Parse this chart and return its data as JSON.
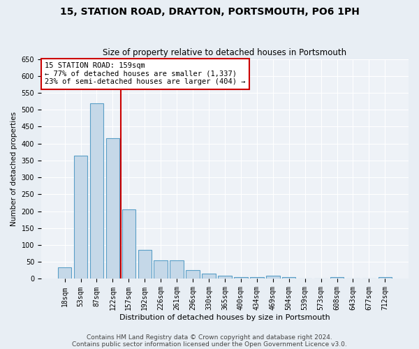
{
  "title1": "15, STATION ROAD, DRAYTON, PORTSMOUTH, PO6 1PH",
  "title2": "Size of property relative to detached houses in Portsmouth",
  "xlabel": "Distribution of detached houses by size in Portsmouth",
  "ylabel": "Number of detached properties",
  "categories": [
    "18sqm",
    "53sqm",
    "87sqm",
    "122sqm",
    "157sqm",
    "192sqm",
    "226sqm",
    "261sqm",
    "296sqm",
    "330sqm",
    "365sqm",
    "400sqm",
    "434sqm",
    "469sqm",
    "504sqm",
    "539sqm",
    "573sqm",
    "608sqm",
    "643sqm",
    "677sqm",
    "712sqm"
  ],
  "values": [
    35,
    365,
    520,
    415,
    205,
    85,
    55,
    55,
    25,
    15,
    10,
    5,
    5,
    10,
    5,
    1,
    1,
    5,
    1,
    1,
    5
  ],
  "bar_color": "#c5d8e8",
  "bar_edge_color": "#5a9fc7",
  "vline_x_idx": 4,
  "vline_color": "#cc0000",
  "annotation_text": "15 STATION ROAD: 159sqm\n← 77% of detached houses are smaller (1,337)\n23% of semi-detached houses are larger (404) →",
  "annotation_box_color": "#ffffff",
  "annotation_box_edge_color": "#cc0000",
  "ylim": [
    0,
    650
  ],
  "yticks": [
    0,
    50,
    100,
    150,
    200,
    250,
    300,
    350,
    400,
    450,
    500,
    550,
    600,
    650
  ],
  "footer1": "Contains HM Land Registry data © Crown copyright and database right 2024.",
  "footer2": "Contains public sector information licensed under the Open Government Licence v3.0.",
  "bg_color": "#e8eef4",
  "plot_bg_color": "#eef2f7",
  "title1_fontsize": 10,
  "title2_fontsize": 8.5,
  "annotation_fontsize": 7.5,
  "footer_fontsize": 6.5,
  "ylabel_fontsize": 7.5,
  "xlabel_fontsize": 8,
  "tick_fontsize": 7
}
